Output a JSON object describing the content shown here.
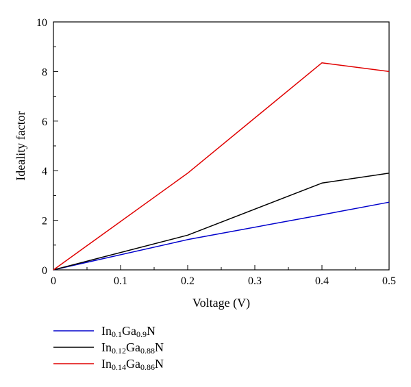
{
  "chart_data": {
    "type": "line",
    "xlabel": "Voltage (V)",
    "ylabel": "Ideality factor",
    "xlim": [
      0,
      0.5
    ],
    "ylim": [
      0,
      10
    ],
    "x": [
      0,
      0.2,
      0.4,
      0.5
    ],
    "x_ticks": [
      "0",
      "0.1",
      "0.2",
      "0.3",
      "0.4",
      "0.5"
    ],
    "y_ticks": [
      "0",
      "2",
      "4",
      "6",
      "8",
      "10"
    ],
    "grid": false,
    "legend_position": "bottom-left, below plot",
    "series": [
      {
        "name": "In0.1Ga0.9N",
        "name_parts": [
          [
            "In",
            false
          ],
          [
            "0.1",
            true
          ],
          [
            "Ga",
            false
          ],
          [
            "0.9",
            true
          ],
          [
            "N",
            false
          ]
        ],
        "color": "#0000cc",
        "values": [
          0,
          1.22,
          2.22,
          2.73
        ]
      },
      {
        "name": "In0.12Ga0.88N",
        "name_parts": [
          [
            "In",
            false
          ],
          [
            "0.12",
            true
          ],
          [
            "Ga",
            false
          ],
          [
            "0.88",
            true
          ],
          [
            "N",
            false
          ]
        ],
        "color": "#000000",
        "values": [
          0,
          1.4,
          3.5,
          3.9
        ]
      },
      {
        "name": "In0.14Ga0.86N",
        "name_parts": [
          [
            "In",
            false
          ],
          [
            "0.14",
            true
          ],
          [
            "Ga",
            false
          ],
          [
            "0.86",
            true
          ],
          [
            "N",
            false
          ]
        ],
        "color": "#e00000",
        "values": [
          0,
          3.9,
          8.35,
          8.0
        ]
      }
    ]
  }
}
